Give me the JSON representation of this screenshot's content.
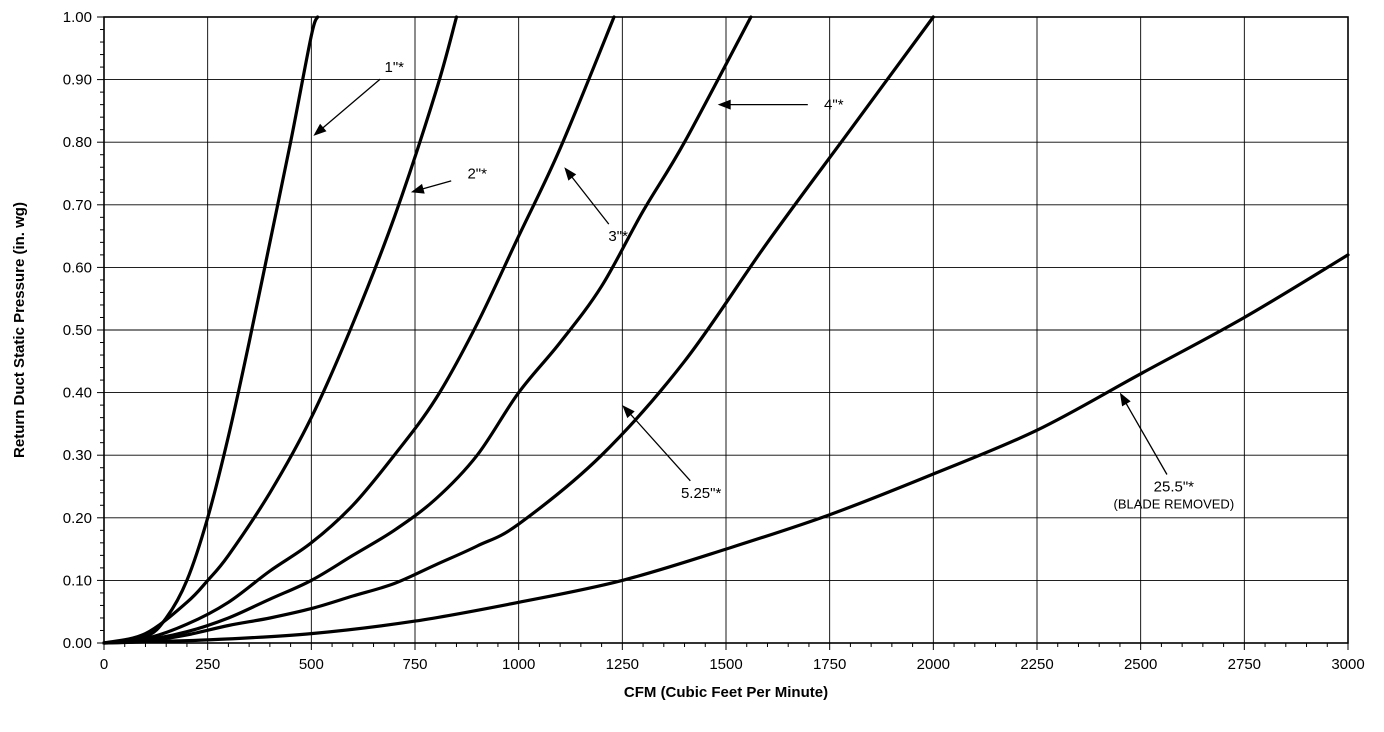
{
  "chart_data": {
    "type": "line",
    "title": "",
    "xlabel": "CFM (Cubic Feet Per Minute)",
    "ylabel": "Return Duct  Static Pressure (in. wg)",
    "xlim": [
      0,
      3000
    ],
    "ylim": [
      0,
      1.0
    ],
    "x_ticks": [
      0,
      250,
      500,
      750,
      1000,
      1250,
      1500,
      1750,
      2000,
      2250,
      2500,
      2750,
      3000
    ],
    "x_tick_labels": [
      "0",
      "250",
      "500",
      "750",
      "1000",
      "1250",
      "1500",
      "1750",
      "2000",
      "2250",
      "2500",
      "2750",
      "3000"
    ],
    "y_ticks": [
      0,
      0.1,
      0.2,
      0.3,
      0.4,
      0.5,
      0.6,
      0.7,
      0.8,
      0.9,
      1.0
    ],
    "y_tick_labels": [
      "0.00",
      "0.10",
      "0.20",
      "0.30",
      "0.40",
      "0.50",
      "0.60",
      "0.70",
      "0.80",
      "0.90",
      "1.00"
    ],
    "grid": true,
    "series": [
      {
        "x": [
          0,
          100,
          150,
          200,
          250,
          300,
          350,
          400,
          450,
          500,
          515
        ],
        "y": [
          0,
          0.01,
          0.04,
          0.1,
          0.2,
          0.33,
          0.48,
          0.64,
          0.8,
          0.97,
          1.0
        ]
      },
      {
        "x": [
          0,
          100,
          200,
          250,
          300,
          400,
          500,
          600,
          700,
          800,
          850
        ],
        "y": [
          0,
          0.015,
          0.065,
          0.1,
          0.14,
          0.24,
          0.36,
          0.51,
          0.68,
          0.88,
          1.0
        ]
      },
      {
        "x": [
          0,
          100,
          200,
          300,
          400,
          500,
          600,
          700,
          800,
          900,
          1000,
          1100,
          1230
        ],
        "y": [
          0,
          0.007,
          0.03,
          0.065,
          0.115,
          0.16,
          0.22,
          0.3,
          0.39,
          0.51,
          0.65,
          0.79,
          1.0
        ]
      },
      {
        "x": [
          0,
          100,
          200,
          300,
          400,
          500,
          600,
          700,
          800,
          900,
          1000,
          1100,
          1200,
          1300,
          1400,
          1560
        ],
        "y": [
          0,
          0.005,
          0.018,
          0.04,
          0.07,
          0.1,
          0.14,
          0.18,
          0.23,
          0.3,
          0.4,
          0.48,
          0.57,
          0.69,
          0.8,
          1.0
        ]
      },
      {
        "x": [
          0,
          100,
          200,
          300,
          400,
          500,
          600,
          700,
          800,
          900,
          1000,
          1200,
          1400,
          1600,
          1800,
          2000
        ],
        "y": [
          0,
          0.003,
          0.013,
          0.028,
          0.04,
          0.055,
          0.075,
          0.095,
          0.125,
          0.155,
          0.19,
          0.3,
          0.45,
          0.64,
          0.82,
          1.0
        ]
      },
      {
        "x": [
          0,
          250,
          500,
          750,
          1000,
          1250,
          1500,
          1750,
          2000,
          2250,
          2500,
          2750,
          3000
        ],
        "y": [
          0,
          0.005,
          0.015,
          0.035,
          0.065,
          0.1,
          0.15,
          0.205,
          0.27,
          0.34,
          0.43,
          0.52,
          0.62
        ]
      }
    ],
    "annotations": [
      {
        "label": "1\"*",
        "sublabel": "",
        "text_at": [
          700,
          0.92
        ],
        "arrow_to": [
          505,
          0.81
        ]
      },
      {
        "label": "2\"*",
        "sublabel": "",
        "text_at": [
          900,
          0.75
        ],
        "arrow_to": [
          740,
          0.72
        ]
      },
      {
        "label": "3\"*",
        "sublabel": "",
        "text_at": [
          1240,
          0.65
        ],
        "arrow_to": [
          1110,
          0.76
        ]
      },
      {
        "label": "4\"*",
        "sublabel": "",
        "text_at": [
          1760,
          0.86
        ],
        "arrow_to": [
          1480,
          0.86
        ]
      },
      {
        "label": "5.25\"*",
        "sublabel": "",
        "text_at": [
          1440,
          0.24
        ],
        "arrow_to": [
          1250,
          0.38
        ]
      },
      {
        "label": "25.5\"*",
        "sublabel": "(BLADE REMOVED)",
        "text_at": [
          2580,
          0.25
        ],
        "arrow_to": [
          2450,
          0.4
        ]
      }
    ]
  }
}
